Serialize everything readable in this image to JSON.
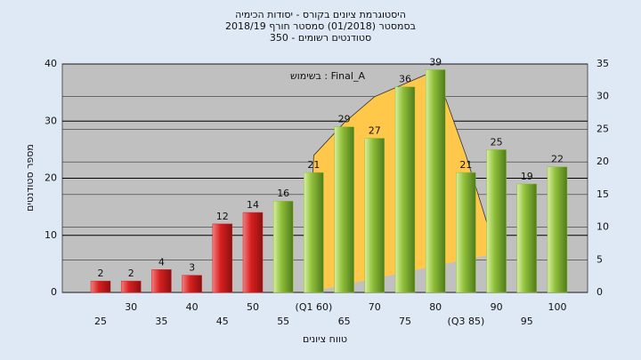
{
  "chart_data": {
    "type": "bar",
    "title": "היסטוגרמת ציונים בקורס - יסודות הכימיה",
    "subtitle": "בסמסטר  (01/2018)  סמסטר חורף 2018/19",
    "subtitle2": "סטודנטים רשומים - 350",
    "annotation": "בשימוש : Final_A",
    "x_label": "טווח ציונים",
    "y_label": "מספר סטודנטים",
    "categories": [
      "25",
      "30",
      "35",
      "40",
      "45",
      "50",
      "55",
      "(Q1 60)",
      "65",
      "70",
      "75",
      "80",
      "(Q3 85)",
      "90",
      "95",
      "100"
    ],
    "values": [
      2,
      2,
      4,
      3,
      12,
      14,
      16,
      21,
      29,
      27,
      36,
      39,
      21,
      25,
      19,
      22
    ],
    "colors": [
      "#d92020",
      "#d92020",
      "#d92020",
      "#d92020",
      "#d92020",
      "#d92020",
      "#8fbf3a",
      "#8fbf3a",
      "#8fbf3a",
      "#8fbf3a",
      "#8fbf3a",
      "#8fbf3a",
      "#8fbf3a",
      "#8fbf3a",
      "#8fbf3a",
      "#8fbf3a"
    ],
    "ylim": [
      0,
      40
    ],
    "yticks": [
      0,
      10,
      20,
      30,
      40
    ],
    "y2lim": [
      0,
      35
    ],
    "y2ticks": [
      0,
      5,
      10,
      15,
      20,
      25,
      30,
      35
    ],
    "curve": {
      "axis": "y2",
      "color": "#ffc84a",
      "x": [
        59,
        60,
        65,
        70,
        75,
        80,
        85,
        90
      ],
      "values": [
        0,
        21,
        26,
        30,
        32,
        34,
        21,
        6
      ]
    },
    "grid": true
  }
}
